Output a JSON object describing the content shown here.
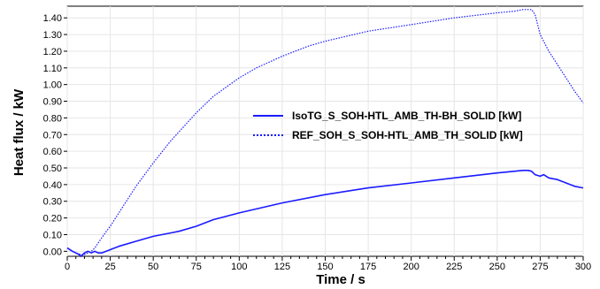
{
  "chart_data": {
    "type": "line",
    "title": "",
    "xlabel": "Time / s",
    "ylabel": "Heat flux / kW",
    "xlim": [
      0,
      300
    ],
    "ylim": [
      -0.03,
      1.47
    ],
    "x_ticks": [
      0,
      25,
      50,
      75,
      100,
      125,
      150,
      175,
      200,
      225,
      250,
      275,
      300
    ],
    "y_ticks": [
      0.0,
      0.1,
      0.2,
      0.3,
      0.4,
      0.5,
      0.6,
      0.7,
      0.8,
      0.9,
      1.0,
      1.1,
      1.2,
      1.3,
      1.4
    ],
    "x_tick_labels": [
      "0",
      "25",
      "50",
      "75",
      "100",
      "125",
      "150",
      "175",
      "200",
      "225",
      "250",
      "275",
      "300"
    ],
    "y_tick_labels": [
      "0.00",
      "0.10",
      "0.20",
      "0.30",
      "0.40",
      "0.50",
      "0.60",
      "0.70",
      "0.80",
      "0.90",
      "1.00",
      "1.10",
      "1.20",
      "1.30",
      "1.40"
    ],
    "grid": true,
    "minor_x_ticks": true,
    "legend_position": "center-right",
    "series": [
      {
        "name": "IsoTG_S_SOH-HTL_AMB_TH-BH_SOLID [kW]",
        "style": "solid",
        "color": "#1a1aff",
        "x": [
          0,
          3,
          5,
          7,
          8,
          9,
          10,
          12,
          14,
          16,
          18,
          20,
          25,
          30,
          40,
          50,
          60,
          65,
          75,
          85,
          100,
          125,
          150,
          175,
          200,
          225,
          250,
          265,
          268,
          270,
          272,
          275,
          277,
          280,
          285,
          290,
          295,
          300
        ],
        "y": [
          0.02,
          0.0,
          -0.01,
          -0.02,
          -0.03,
          -0.02,
          -0.01,
          0.0,
          -0.01,
          0.0,
          -0.01,
          -0.01,
          0.01,
          0.03,
          0.06,
          0.09,
          0.11,
          0.12,
          0.15,
          0.19,
          0.23,
          0.29,
          0.34,
          0.38,
          0.41,
          0.44,
          0.47,
          0.485,
          0.485,
          0.48,
          0.46,
          0.45,
          0.46,
          0.44,
          0.43,
          0.41,
          0.39,
          0.38
        ]
      },
      {
        "name": "REF_SOH_S_SOH-HTL_AMB_TH_SOLID [kW]",
        "style": "dotted",
        "color": "#1a1aff",
        "x": [
          0,
          3,
          5,
          8,
          10,
          12,
          14,
          16,
          18,
          20,
          22,
          25,
          30,
          35,
          40,
          50,
          60,
          75,
          85,
          100,
          110,
          125,
          140,
          150,
          175,
          200,
          225,
          250,
          260,
          265,
          270,
          272,
          275,
          280,
          285,
          290,
          295,
          300
        ],
        "y": [
          0.02,
          0.0,
          -0.01,
          -0.02,
          -0.02,
          -0.01,
          0.0,
          0.02,
          0.05,
          0.08,
          0.11,
          0.15,
          0.23,
          0.31,
          0.39,
          0.53,
          0.66,
          0.83,
          0.93,
          1.04,
          1.1,
          1.17,
          1.23,
          1.26,
          1.32,
          1.36,
          1.4,
          1.43,
          1.44,
          1.45,
          1.45,
          1.42,
          1.3,
          1.2,
          1.12,
          1.04,
          0.96,
          0.89
        ]
      }
    ]
  }
}
